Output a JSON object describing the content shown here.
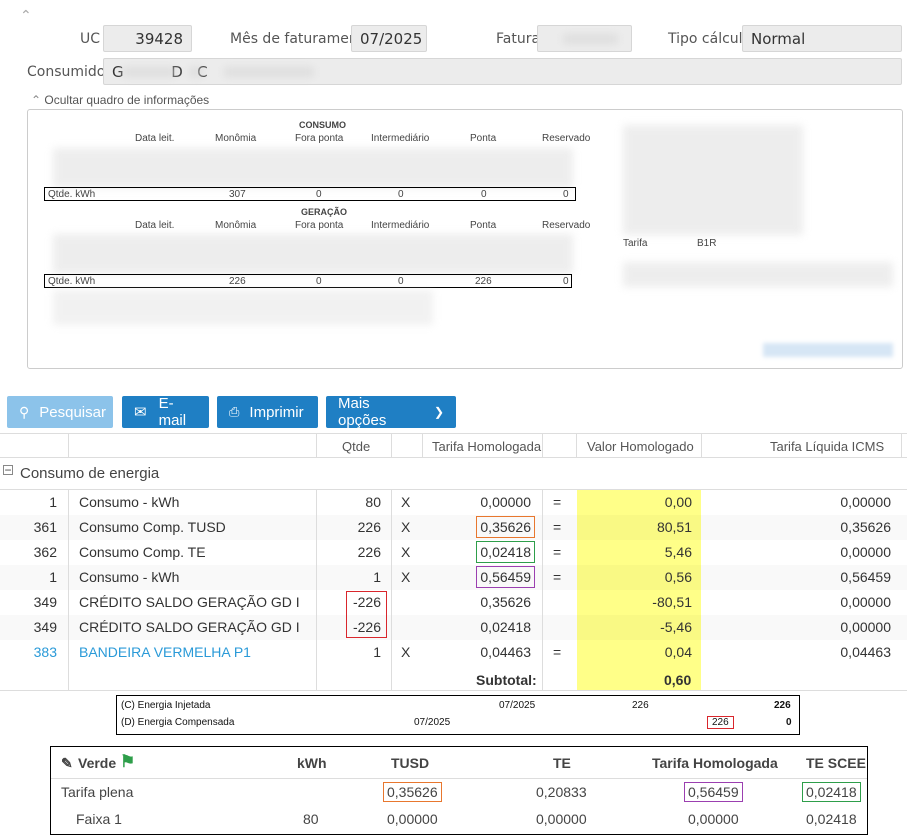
{
  "header": {
    "uc_label": "UC",
    "uc_value": "39428",
    "mes_label": "Mês de faturamento",
    "mes_value": "07/2025",
    "fatura_label": "Fatura",
    "tipo_label": "Tipo cálculo",
    "tipo_value": "Normal",
    "consumidor_label": "Consumidor",
    "consumidor_value": "G          D   C"
  },
  "info": {
    "toggle_label": "Ocultar quadro de informações",
    "consumo_title": "CONSUMO",
    "geracao_title": "GERAÇÃO",
    "columns": [
      "Data leit.",
      "Monômia",
      "Fora ponta",
      "Intermediário",
      "Ponta",
      "Reservado"
    ],
    "consumo_row": {
      "label": "Qtde. kWh",
      "values": [
        "307",
        "0",
        "0",
        "0",
        "0"
      ]
    },
    "geracao_row": {
      "label": "Qtde. kWh",
      "values": [
        "226",
        "0",
        "0",
        "226",
        "0"
      ]
    },
    "tarifa_label": "Tarifa",
    "tarifa_value": "B1R"
  },
  "toolbar": {
    "pesquisar": "Pesquisar",
    "email": "E-mail",
    "imprimir": "Imprimir",
    "mais": "Mais opções"
  },
  "grid": {
    "headers": {
      "qtde": "Qtde",
      "tarifa": "Tarifa Homologada",
      "valor": "Valor Homologado",
      "liquida": "Tarifa Líquida ICMS"
    },
    "group_label": "Consumo de energia",
    "rows": [
      {
        "code": "1",
        "desc": "Consumo - kWh",
        "qtde": "80",
        "x": "X",
        "tarifa": "0,00000",
        "eq": "=",
        "valor": "0,00",
        "liquida": "0,00000"
      },
      {
        "code": "361",
        "desc": "Consumo Comp. TUSD",
        "qtde": "226",
        "x": "X",
        "tarifa": "0,35626",
        "eq": "=",
        "valor": "80,51",
        "liquida": "0,35626"
      },
      {
        "code": "362",
        "desc": "Consumo Comp. TE",
        "qtde": "226",
        "x": "X",
        "tarifa": "0,02418",
        "eq": "=",
        "valor": "5,46",
        "liquida": "0,00000"
      },
      {
        "code": "1",
        "desc": "Consumo - kWh",
        "qtde": "1",
        "x": "X",
        "tarifa": "0,56459",
        "eq": "=",
        "valor": "0,56",
        "liquida": "0,56459"
      },
      {
        "code": "349",
        "desc": "CRÉDITO SALDO GERAÇÃO GD I",
        "qtde": "-226",
        "x": "",
        "tarifa": "0,35626",
        "eq": "",
        "valor": "-80,51",
        "liquida": "0,00000"
      },
      {
        "code": "349",
        "desc": "CRÉDITO SALDO GERAÇÃO GD I",
        "qtde": "-226",
        "x": "",
        "tarifa": "0,02418",
        "eq": "",
        "valor": "-5,46",
        "liquida": "0,00000"
      },
      {
        "code": "383",
        "desc": "BANDEIRA VERMELHA P1",
        "qtde": "1",
        "x": "X",
        "tarifa": "0,04463",
        "eq": "=",
        "valor": "0,04",
        "liquida": "0,04463"
      }
    ],
    "subtotal_label": "Subtotal:",
    "subtotal_value": "0,60"
  },
  "energia": {
    "injetada_label": "(C) Energia Injetada",
    "injetada_mes": "07/2025",
    "injetada_v1": "226",
    "injetada_v2": "226",
    "compensada_label": "(D) Energia Compensada",
    "compensada_mes": "07/2025",
    "compensada_v1": "226",
    "compensada_v2": "0"
  },
  "bandeira": {
    "title": "Verde",
    "headers": [
      "kWh",
      "TUSD",
      "TE",
      "Tarifa Homologada",
      "TE SCEE"
    ],
    "rows": [
      {
        "label": "Tarifa plena",
        "kwh": "",
        "tusd": "0,35626",
        "te": "0,20833",
        "homologada": "0,56459",
        "tescee": "0,02418"
      },
      {
        "label": "Faixa 1",
        "kwh": "80",
        "tusd": "0,00000",
        "te": "0,00000",
        "homologada": "0,00000",
        "tescee": "0,02418"
      }
    ]
  },
  "colors": {
    "orange": "#e8772e",
    "green": "#2e9e4a",
    "purple": "#9b3fb0",
    "red": "#d9262c",
    "yellow": "#ffff88",
    "blue": "#1f7fc4",
    "link": "#2a9ad8"
  }
}
